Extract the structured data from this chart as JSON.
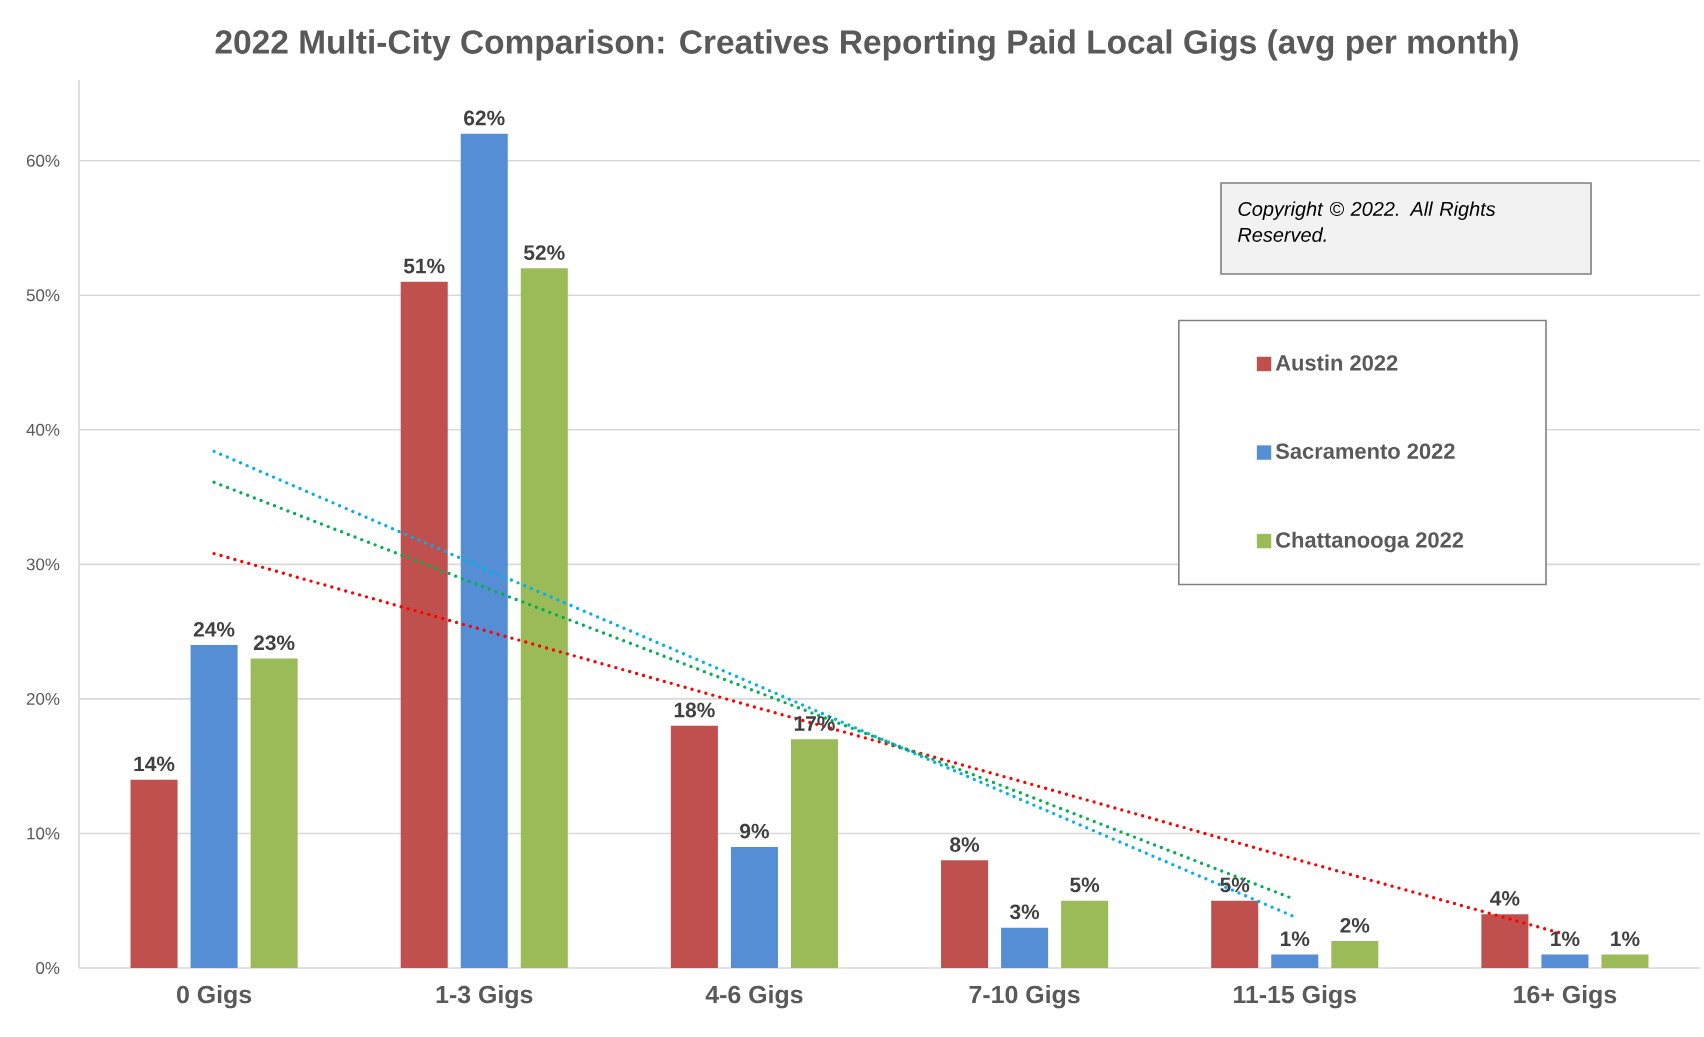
{
  "chart_data": {
    "type": "bar",
    "title": "2022 Multi-City Comparison: Creatives Reporting Paid Local Gigs (avg per month)",
    "categories": [
      "0 Gigs",
      "1-3 Gigs",
      "4-6 Gigs",
      "7-10 Gigs",
      "11-15 Gigs",
      "16+ Gigs"
    ],
    "series": [
      {
        "name": "Austin 2022",
        "color": "#c0504d",
        "values": [
          14,
          51,
          18,
          8,
          5,
          4
        ],
        "value_labels": [
          "14%",
          "51%",
          "18%",
          "8%",
          "5%",
          "4%"
        ]
      },
      {
        "name": "Sacramento 2022",
        "color": "#558ed5",
        "values": [
          24,
          62,
          9,
          3,
          1,
          1
        ],
        "value_labels": [
          "24%",
          "62%",
          "9%",
          "3%",
          "1%",
          "1%"
        ]
      },
      {
        "name": "Chattanooga 2022",
        "color": "#9bbb59",
        "values": [
          23,
          52,
          17,
          5,
          2,
          1
        ],
        "value_labels": [
          "23%",
          "52%",
          "17%",
          "5%",
          "2%",
          "1%"
        ]
      },
      {
        "type": "line",
        "color": "#ff0000",
        "values": [
          30.8,
          25.1,
          19.4,
          13.8,
          8.1,
          2.5
        ]
      },
      {
        "type": "line",
        "color": "#00b0f0",
        "values": [
          38.4,
          29.7,
          21.1,
          12.4,
          3.8,
          null
        ]
      },
      {
        "type": "line",
        "color": "#00b050",
        "values": [
          36.1,
          28.3,
          20.6,
          12.9,
          5.1,
          null
        ]
      }
    ],
    "ylim": [
      0,
      66
    ],
    "yticks": [
      {
        "value": 0,
        "label": "0%"
      },
      {
        "value": 10,
        "label": "10%"
      },
      {
        "value": 20,
        "label": "20%"
      },
      {
        "value": 30,
        "label": "30%"
      },
      {
        "value": 40,
        "label": "40%"
      },
      {
        "value": 50,
        "label": "50%"
      },
      {
        "value": 60,
        "label": "60%"
      }
    ],
    "grid": "y",
    "legend": "right",
    "marker": "none",
    "line_style": "dotted",
    "annotations": [
      "Copyright © 2022. All Rights Reserved."
    ]
  }
}
